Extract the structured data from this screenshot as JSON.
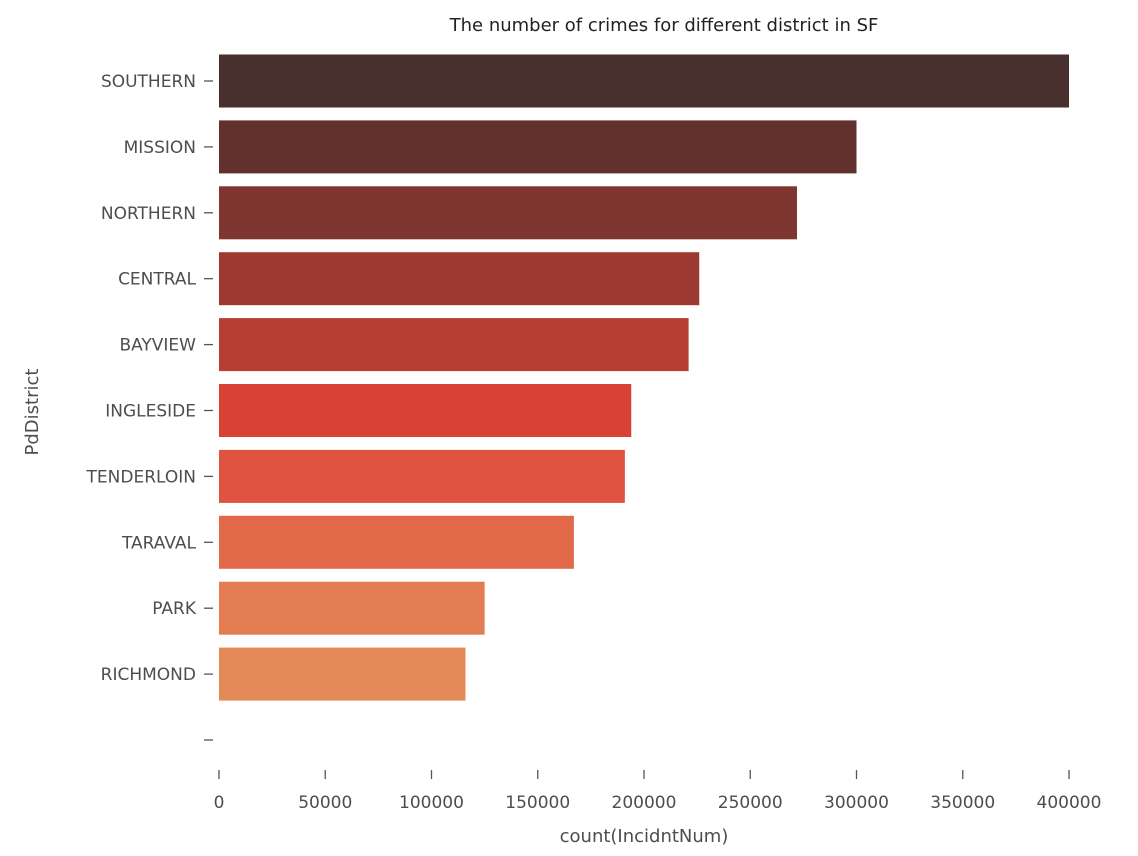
{
  "chart_data": {
    "type": "bar",
    "orientation": "horizontal",
    "title": "The number of crimes for different district in SF",
    "xlabel": "count(IncidntNum)",
    "ylabel": "PdDistrict",
    "categories": [
      "SOUTHERN",
      "MISSION",
      "NORTHERN",
      "CENTRAL",
      "BAYVIEW",
      "INGLESIDE",
      "TENDERLOIN",
      "TARAVAL",
      "PARK",
      "RICHMOND",
      ""
    ],
    "values": [
      400000,
      300000,
      272000,
      226000,
      221000,
      194000,
      191000,
      167000,
      125000,
      116000,
      0
    ],
    "colors": [
      "#47302e",
      "#63312d",
      "#7f3630",
      "#9c3a32",
      "#b83e34",
      "#d94036",
      "#df5440",
      "#e1694a",
      "#e37c50",
      "#e48a57"
    ],
    "xlim": [
      0,
      400000
    ],
    "xticks": [
      0,
      50000,
      100000,
      150000,
      200000,
      250000,
      300000,
      350000,
      400000
    ],
    "xtick_labels": [
      "0",
      "50000",
      "100000",
      "150000",
      "200000",
      "250000",
      "300000",
      "350000",
      "400000"
    ],
    "grid": false,
    "legend": "none"
  }
}
